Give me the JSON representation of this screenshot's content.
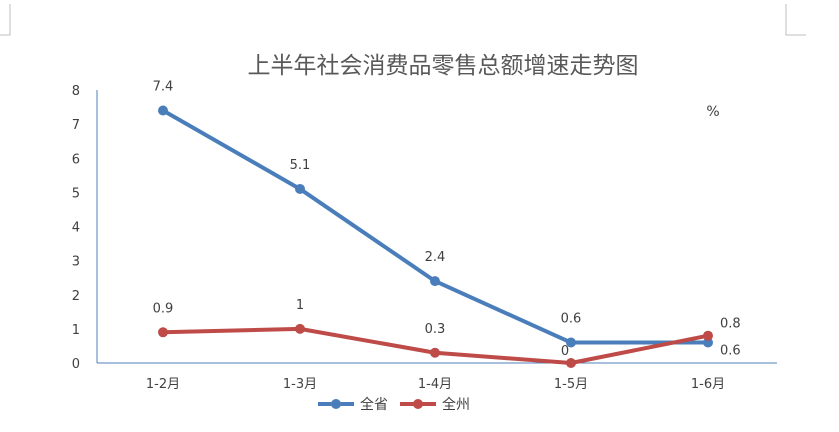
{
  "chart_data": {
    "type": "line",
    "title": "上半年社会消费品零售总额增速走势图",
    "unit_label": "%",
    "categories": [
      "1-2月",
      "1-3月",
      "1-4月",
      "1-5月",
      "1-6月"
    ],
    "ylim": [
      0,
      8
    ],
    "yticks": [
      "0",
      "1",
      "2",
      "3",
      "4",
      "5",
      "6",
      "7",
      "8"
    ],
    "grid": false,
    "legend_position": "bottom",
    "series": [
      {
        "name": "全省",
        "color": "#4a7ebb",
        "values": [
          7.4,
          5.1,
          2.4,
          0.6,
          0.6
        ],
        "labels": [
          "7.4",
          "5.1",
          "2.4",
          "0.6",
          "0.6"
        ]
      },
      {
        "name": "全州",
        "color": "#be4b48",
        "values": [
          0.9,
          1,
          0.3,
          0,
          0.8
        ],
        "labels": [
          "0.9",
          "1",
          "0.3",
          "0",
          "0.8"
        ]
      }
    ]
  }
}
